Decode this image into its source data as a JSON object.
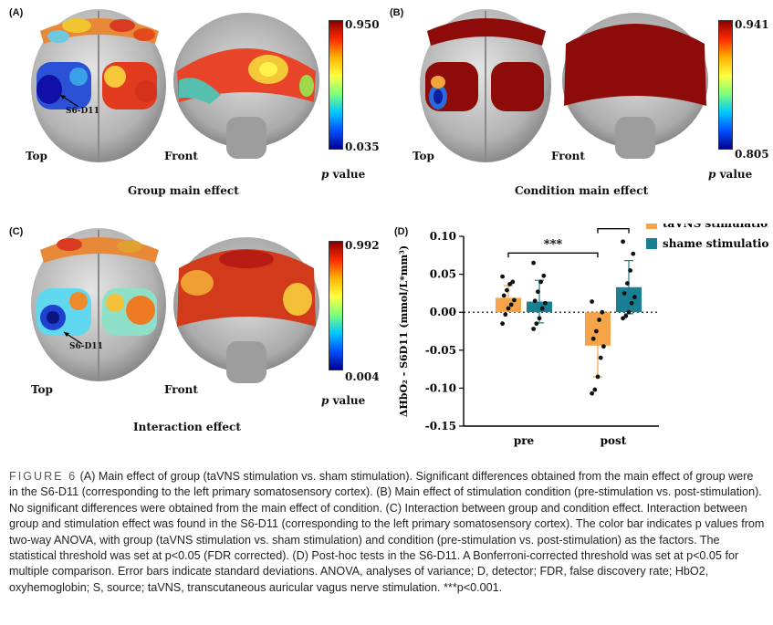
{
  "panels": {
    "A": {
      "letter": "(A)",
      "views": [
        "Top",
        "Front"
      ],
      "detector_label": "S6-D11",
      "colorbar": {
        "max": "0.950",
        "min": "0.035",
        "label_p": "p",
        "label_value": " value"
      },
      "title": "Group main effect"
    },
    "B": {
      "letter": "(B)",
      "views": [
        "Top",
        "Front"
      ],
      "colorbar": {
        "max": "0.941",
        "min": "0.805",
        "label_p": "p",
        "label_value": " value"
      },
      "title": "Condition main effect"
    },
    "C": {
      "letter": "(C)",
      "views": [
        "Top",
        "Front"
      ],
      "detector_label": "S6-D11",
      "colorbar": {
        "max": "0.992",
        "min": "0.004",
        "label_p": "p",
        "label_value": " value"
      },
      "title": "Interaction effect"
    },
    "D": {
      "letter": "(D)"
    }
  },
  "colors": {
    "tavns": "#F5A449",
    "sham": "#1A7F93",
    "brain": "#b9b9b9"
  },
  "chart_data": {
    "type": "bar",
    "ylabel": "ΔHbO₂ - S6D11 (mmol/L*mm³)",
    "categories": [
      "pre",
      "post"
    ],
    "ylim": [
      -0.15,
      0.1
    ],
    "yticks": [
      "0.10",
      "0.05",
      "0.00",
      "-0.05",
      "-0.10",
      "-0.15"
    ],
    "ytick_values": [
      0.1,
      0.05,
      0.0,
      -0.05,
      -0.1,
      -0.15
    ],
    "legend_position": "top-right",
    "series": [
      {
        "name": "taVNS stimulation",
        "color": "#F5A449",
        "values": [
          0.019,
          -0.044
        ],
        "sd": [
          0.016,
          0.041
        ],
        "points": [
          [
            0.047,
            0.04,
            0.037,
            0.029,
            0.022,
            0.016,
            0.01,
            0.005,
            -0.003,
            -0.015
          ],
          [
            0.014,
            0.0,
            -0.01,
            -0.025,
            -0.035,
            -0.045,
            -0.06,
            -0.085,
            -0.102,
            -0.107
          ]
        ]
      },
      {
        "name": "shame stimulation",
        "color": "#1A7F93",
        "values": [
          0.014,
          0.033
        ],
        "sd": [
          0.028,
          0.035
        ],
        "points": [
          [
            0.065,
            0.048,
            0.04,
            0.027,
            0.015,
            0.012,
            0.005,
            -0.008,
            -0.015,
            -0.022
          ],
          [
            0.093,
            0.077,
            0.055,
            0.038,
            0.025,
            0.02,
            0.012,
            0.0,
            -0.005,
            -0.008
          ]
        ]
      }
    ],
    "annotations": [
      "***",
      "***"
    ]
  },
  "caption": {
    "fig_label": "FIGURE 6",
    "text": "(A) Main effect of group (taVNS stimulation vs. sham stimulation). Significant differences obtained from the main effect of group were in the S6-D11 (corresponding to the left primary somatosensory cortex). (B) Main effect of stimulation condition (pre-stimulation vs. post-stimulation). No significant differences were obtained from the main effect of condition. (C) Interaction between group and condition effect. Interaction between group and stimulation effect was found in the S6-D11 (corresponding to the left primary somatosensory cortex). The color bar indicates p values from two-way ANOVA, with group (taVNS stimulation vs. sham stimulation) and condition (pre-stimulation vs. post-stimulation) as the factors. The statistical threshold was set at p<0.05 (FDR corrected). (D) Post-hoc tests in the S6-D11. A Bonferroni-corrected threshold was set at p<0.05 for multiple comparison. Error bars indicate standard deviations. ANOVA, analyses of variance; D, detector; FDR, false discovery rate; HbO2, oxyhemoglobin; S, source; taVNS, transcutaneous auricular vagus nerve stimulation. ***p<0.001."
  }
}
